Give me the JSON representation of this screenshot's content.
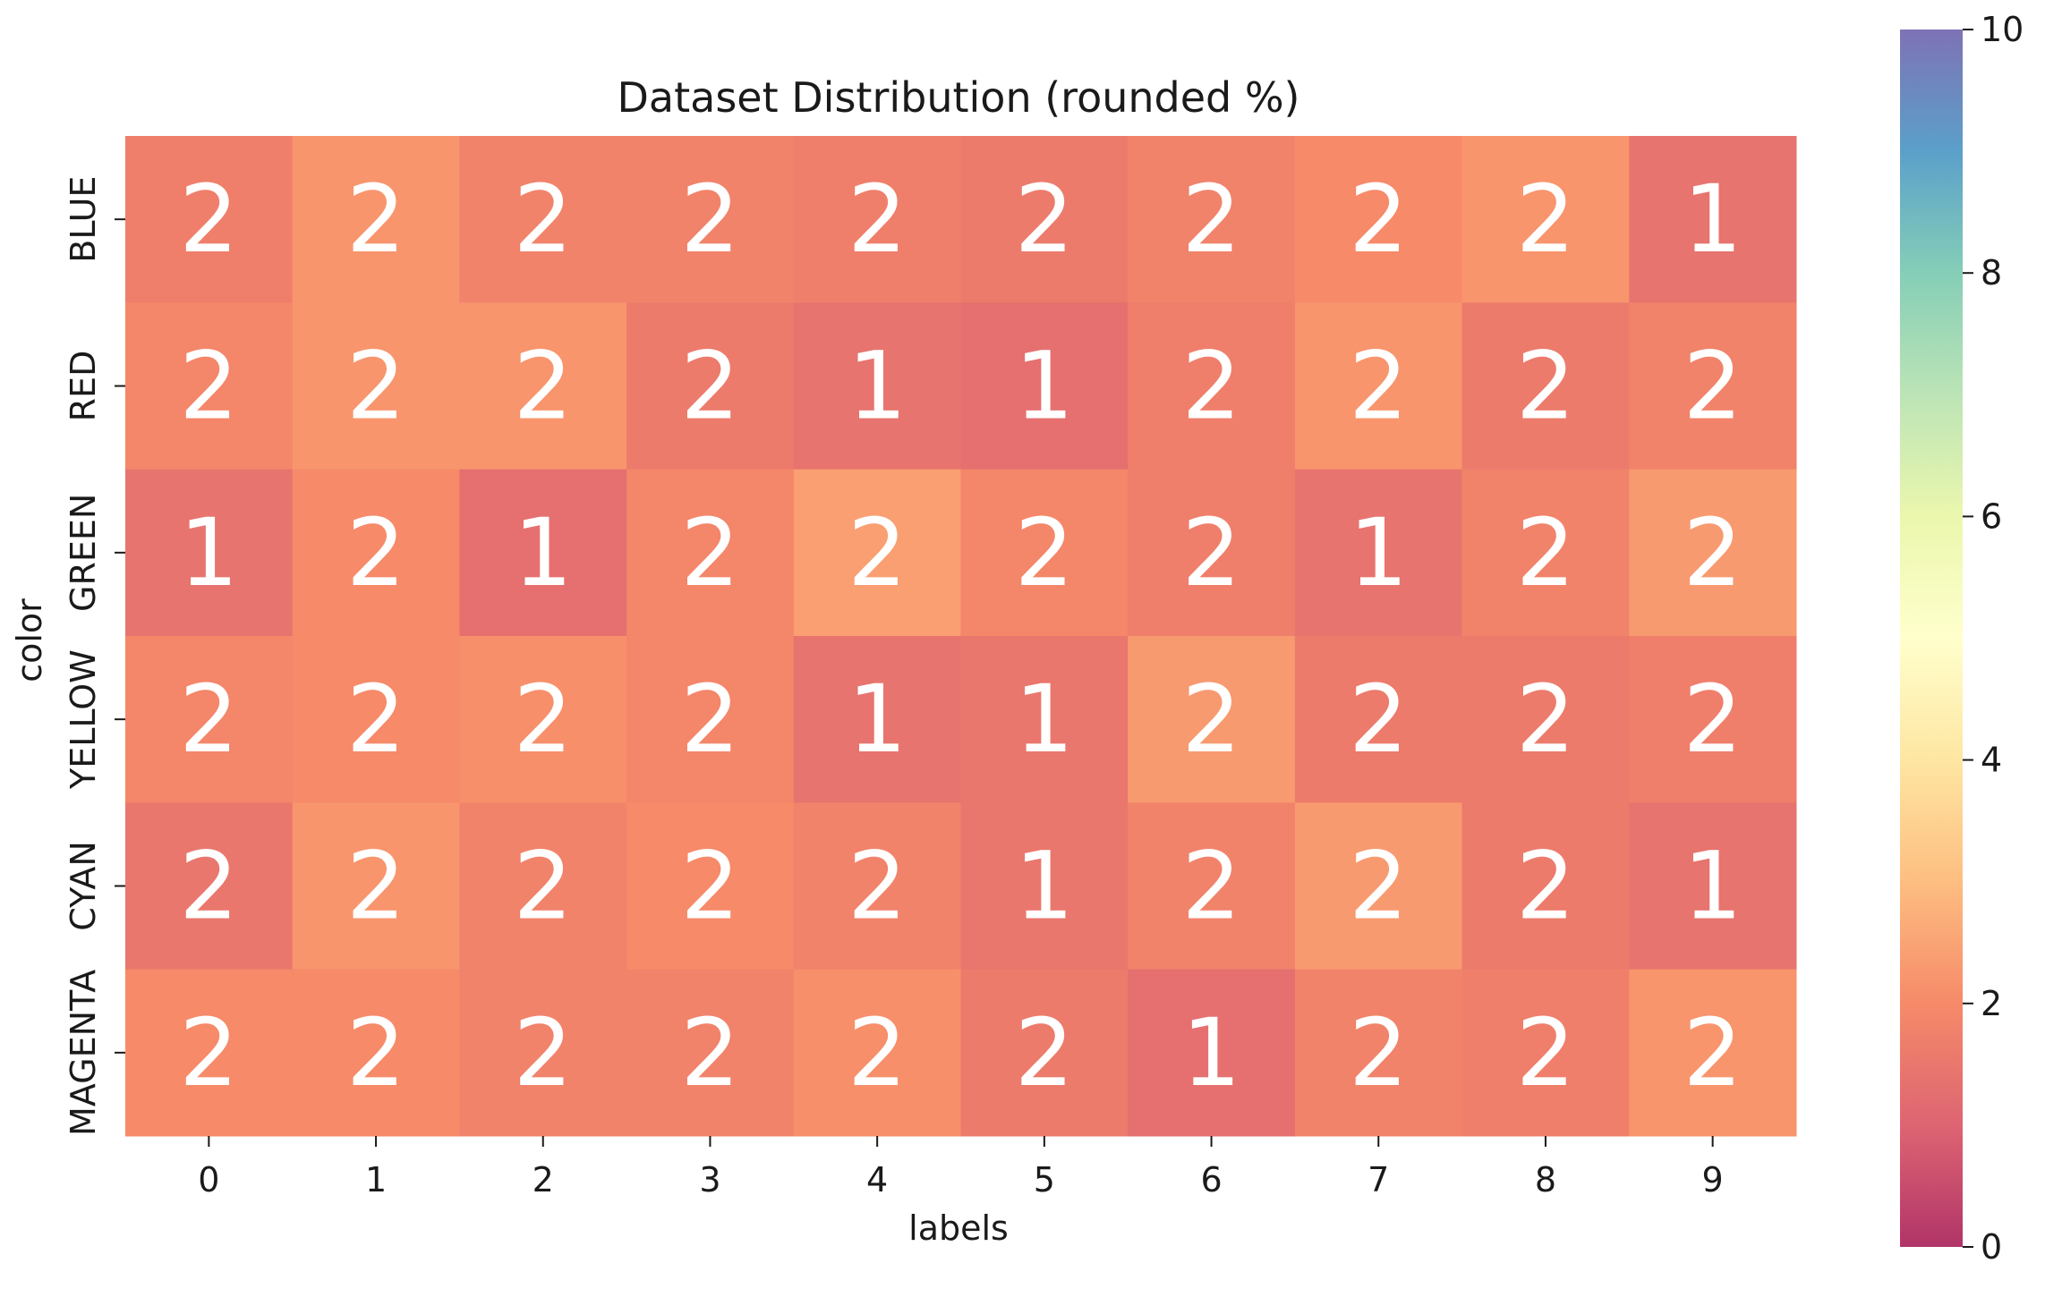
{
  "chart_data": {
    "type": "heatmap",
    "title": "Dataset Distribution (rounded %)",
    "xlabel": "labels",
    "ylabel": "color",
    "x_categories": [
      "0",
      "1",
      "2",
      "3",
      "4",
      "5",
      "6",
      "7",
      "8",
      "9"
    ],
    "y_categories": [
      "BLUE",
      "RED",
      "GREEN",
      "YELLOW",
      "CYAN",
      "MAGENTA"
    ],
    "values": [
      [
        1.7,
        2.2,
        1.8,
        1.8,
        1.7,
        1.6,
        1.8,
        2.0,
        2.2,
        1.4
      ],
      [
        1.9,
        2.2,
        2.2,
        1.6,
        1.4,
        1.3,
        1.7,
        2.2,
        1.6,
        1.8
      ],
      [
        1.4,
        2.0,
        1.3,
        1.9,
        2.4,
        1.9,
        1.7,
        1.4,
        1.8,
        2.3
      ],
      [
        1.9,
        2.0,
        2.1,
        1.9,
        1.4,
        1.5,
        2.3,
        1.6,
        1.6,
        1.7
      ],
      [
        1.5,
        2.2,
        1.8,
        2.0,
        1.8,
        1.5,
        1.8,
        2.3,
        1.6,
        1.4
      ],
      [
        2.0,
        2.0,
        1.8,
        1.8,
        2.1,
        1.6,
        1.3,
        1.8,
        1.7,
        2.2
      ]
    ],
    "annotations": [
      [
        "2",
        "2",
        "2",
        "2",
        "2",
        "2",
        "2",
        "2",
        "2",
        "1"
      ],
      [
        "2",
        "2",
        "2",
        "2",
        "1",
        "1",
        "2",
        "2",
        "2",
        "2"
      ],
      [
        "1",
        "2",
        "1",
        "2",
        "2",
        "2",
        "2",
        "1",
        "2",
        "2"
      ],
      [
        "2",
        "2",
        "2",
        "2",
        "1",
        "1",
        "2",
        "2",
        "2",
        "2"
      ],
      [
        "2",
        "2",
        "2",
        "2",
        "2",
        "1",
        "2",
        "2",
        "2",
        "1"
      ],
      [
        "2",
        "2",
        "2",
        "2",
        "2",
        "2",
        "1",
        "2",
        "2",
        "2"
      ]
    ],
    "colorbar": {
      "min": 0,
      "max": 10,
      "ticks": [
        "0",
        "2",
        "4",
        "6",
        "8",
        "10"
      ],
      "colormap": [
        "#9e0142",
        "#d53e4f",
        "#f46d43",
        "#fdae61",
        "#fee08b",
        "#ffffbf",
        "#e6f598",
        "#abdda4",
        "#66c2a5",
        "#3288bd",
        "#5e4fa2"
      ]
    },
    "cell_alpha": 0.8,
    "grid": false
  }
}
